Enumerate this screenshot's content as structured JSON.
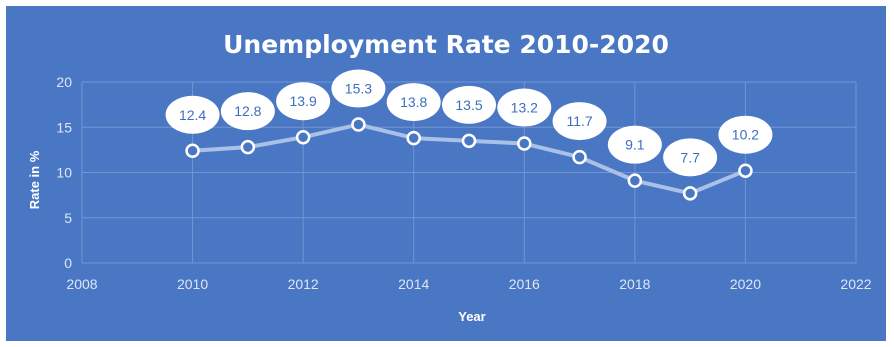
{
  "chart_data": {
    "type": "scatter",
    "title": "Unemployment Rate 2010-2020",
    "xlabel": "Year",
    "ylabel": "Rate in %",
    "xlim": [
      2008,
      2022
    ],
    "ylim": [
      0,
      20
    ],
    "xticks": [
      2008,
      2010,
      2012,
      2014,
      2016,
      2018,
      2020,
      2022
    ],
    "yticks": [
      0,
      5,
      10,
      15,
      20
    ],
    "grid": true,
    "series": [
      {
        "x": [
          2010,
          2011,
          2012,
          2013,
          2014,
          2015,
          2016,
          2017,
          2018,
          2019,
          2020
        ],
        "y": [
          12.4,
          12.8,
          13.9,
          15.3,
          13.8,
          13.5,
          13.2,
          11.7,
          9.1,
          7.7,
          10.2
        ]
      }
    ],
    "data_labels": [
      "12.4",
      "12.8",
      "13.9",
      "15.3",
      "13.8",
      "13.5",
      "13.2",
      "11.7",
      "9.1",
      "7.7",
      "10.2"
    ],
    "colors": {
      "background": "#4a77c4",
      "line": "#a9c1e6",
      "marker_fill": "#ffffff",
      "marker_stroke": "#ffffff",
      "label_bubble": "#ffffff",
      "label_text": "#3d6fbf",
      "grid": "#7295d0"
    }
  }
}
